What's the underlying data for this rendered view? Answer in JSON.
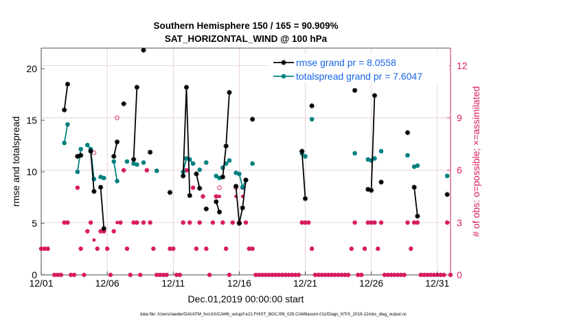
{
  "chart_data": {
    "type": "line",
    "title": "Southern Hemisphere 150 / 165 = 90.909%",
    "subtitle": "SAT_HORIZONTAL_WIND @ 100 hPa",
    "xlabel": "Dec.01,2019 00:00:00 start",
    "ylabel_left": "rmse and totalspread",
    "ylabel_right": "# of obs: o=possible; ×=assimilated",
    "footnote": "data file: /Users/raeder/DAI/ATM_forcXX/CAM6_setup/f.e21.FHIST_BGC.f09_025.CAM6assim.011/Diags_NTrS_2019-12/obs_diag_output.nc",
    "x_range": [
      1,
      32
    ],
    "ylim_left": [
      0,
      22
    ],
    "ylim_right": [
      0,
      13
    ],
    "x_ticks": [
      {
        "x": 1,
        "label": "12/01"
      },
      {
        "x": 6,
        "label": "12/06"
      },
      {
        "x": 11,
        "label": "12/11"
      },
      {
        "x": 16,
        "label": "12/16"
      },
      {
        "x": 21,
        "label": "12/21"
      },
      {
        "x": 26,
        "label": "12/26"
      },
      {
        "x": 31,
        "label": "12/31"
      }
    ],
    "y_ticks_left": [
      0,
      5,
      10,
      15,
      20
    ],
    "y_ticks_right": [
      0,
      3,
      6,
      9,
      12
    ],
    "legend": [
      {
        "label": "rmse grand pr = 8.0558",
        "color": "#000000",
        "marker": "star"
      },
      {
        "label": "totalspread grand pr = 7.6047",
        "color": "#008080",
        "marker": "dot"
      }
    ],
    "colors": {
      "rmse": "#000000",
      "spread": "#008080",
      "obs": "#d81b60",
      "grid": "#e3c8d4"
    },
    "rmse": [
      [
        [
          2.75,
          16.0
        ],
        [
          3.0,
          18.5
        ]
      ],
      [
        [
          3.75,
          11.5
        ],
        [
          4.0,
          11.6
        ]
      ],
      [
        [
          4.75,
          12.0
        ],
        [
          5.0,
          8.1
        ]
      ],
      [
        [
          5.5,
          8.5
        ],
        [
          5.75,
          4.5
        ]
      ],
      [
        [
          6.5,
          11.5
        ],
        [
          6.75,
          12.9
        ]
      ],
      [
        [
          7.25,
          16.6
        ]
      ],
      [
        [
          8.0,
          11.2
        ],
        [
          8.25,
          18.2
        ]
      ],
      [
        [
          8.75,
          21.8
        ]
      ],
      [
        [
          9.25,
          11.9
        ]
      ],
      [
        [
          10.75,
          8.0
        ]
      ],
      [
        [
          11.75,
          9.6
        ],
        [
          12.0,
          18.2
        ],
        [
          12.25,
          7.7
        ]
      ],
      [
        [
          12.75,
          9.8
        ],
        [
          13.0,
          8.4
        ]
      ],
      [
        [
          13.5,
          6.4
        ]
      ],
      [
        [
          14.25,
          7.1
        ],
        [
          14.5,
          6.1
        ]
      ],
      [
        [
          14.75,
          9.5
        ],
        [
          15.0,
          12.5
        ],
        [
          15.25,
          17.7
        ]
      ],
      [
        [
          15.75,
          8.6
        ],
        [
          16.0,
          5.0
        ],
        [
          16.25,
          6.5
        ],
        [
          16.5,
          9.2
        ]
      ],
      [
        [
          17.0,
          15.1
        ]
      ],
      [
        [
          20.75,
          12.0
        ],
        [
          21.0,
          7.4
        ]
      ],
      [
        [
          21.5,
          16.4
        ]
      ],
      [
        [
          24.75,
          17.9
        ]
      ],
      [
        [
          25.75,
          8.3
        ],
        [
          26.0,
          8.2
        ],
        [
          26.25,
          17.4
        ]
      ],
      [
        [
          26.75,
          9.0
        ]
      ],
      [
        [
          28.75,
          13.8
        ]
      ],
      [
        [
          29.25,
          8.5
        ],
        [
          29.5,
          5.7
        ]
      ],
      [
        [
          31.75,
          7.8
        ]
      ]
    ],
    "spread": [
      [
        [
          2.75,
          12.8
        ],
        [
          3.0,
          14.6
        ]
      ],
      [
        [
          3.75,
          10.0
        ],
        [
          4.0,
          12.2
        ]
      ],
      [
        [
          4.5,
          12.6
        ],
        [
          4.75,
          12.2
        ],
        [
          5.0,
          9.3
        ]
      ],
      [
        [
          5.5,
          9.5
        ],
        [
          5.75,
          9.4
        ]
      ],
      [
        [
          6.5,
          11.0
        ],
        [
          6.75,
          9.1
        ]
      ],
      [
        [
          7.5,
          11.0
        ]
      ],
      [
        [
          8.0,
          10.8
        ],
        [
          8.25,
          10.7
        ]
      ],
      [
        [
          8.75,
          10.9
        ]
      ],
      [
        [
          9.75,
          10.1
        ]
      ],
      [
        [
          11.75,
          10.0
        ],
        [
          12.0,
          11.3
        ],
        [
          12.25,
          11.2
        ],
        [
          12.5,
          10.8
        ]
      ],
      [
        [
          13.0,
          10.2
        ]
      ],
      [
        [
          13.5,
          10.9
        ]
      ],
      [
        [
          14.25,
          9.6
        ],
        [
          14.5,
          9.4
        ]
      ],
      [
        [
          14.75,
          10.4
        ],
        [
          15.0,
          10.8
        ],
        [
          15.25,
          11.1
        ]
      ],
      [
        [
          15.75,
          9.9
        ],
        [
          16.0,
          9.8
        ],
        [
          16.25,
          8.5
        ],
        [
          16.5,
          9.2
        ]
      ],
      [
        [
          17.0,
          10.8
        ]
      ],
      [
        [
          20.75,
          11.8
        ],
        [
          21.0,
          11.5
        ]
      ],
      [
        [
          21.5,
          15.1
        ]
      ],
      [
        [
          24.75,
          11.8
        ]
      ],
      [
        [
          25.75,
          11.2
        ],
        [
          26.0,
          11.1
        ],
        [
          26.25,
          11.3
        ]
      ],
      [
        [
          26.75,
          12.0
        ]
      ],
      [
        [
          28.75,
          11.6
        ]
      ],
      [
        [
          29.25,
          10.5
        ],
        [
          29.5,
          10.6
        ]
      ],
      [
        [
          31.75,
          9.6
        ]
      ]
    ],
    "obs_possible": [
      [
        1.0,
        1.5
      ],
      [
        1.25,
        1.5
      ],
      [
        1.5,
        1.5
      ],
      [
        2.0,
        0
      ],
      [
        2.25,
        0
      ],
      [
        2.5,
        0
      ],
      [
        2.75,
        3.0
      ],
      [
        3.0,
        3.0
      ],
      [
        3.25,
        0
      ],
      [
        3.5,
        0
      ],
      [
        3.75,
        5.0
      ],
      [
        4.0,
        1.5
      ],
      [
        4.25,
        0
      ],
      [
        4.5,
        2.5
      ],
      [
        4.75,
        3.0
      ],
      [
        5.0,
        7.0
      ],
      [
        5.25,
        1.5
      ],
      [
        5.5,
        2.5
      ],
      [
        5.75,
        2.5
      ],
      [
        6.0,
        1.5
      ],
      [
        6.25,
        0
      ],
      [
        6.5,
        2.5
      ],
      [
        6.75,
        9.0
      ],
      [
        7.0,
        3.0
      ],
      [
        7.25,
        6.0
      ],
      [
        7.5,
        1.5
      ],
      [
        7.75,
        0
      ],
      [
        8.0,
        3.0
      ],
      [
        8.25,
        3.0
      ],
      [
        8.5,
        0
      ],
      [
        8.75,
        3.0
      ],
      [
        9.0,
        6.0
      ],
      [
        9.25,
        3.0
      ],
      [
        9.5,
        1.5
      ],
      [
        9.75,
        0
      ],
      [
        10.0,
        0
      ],
      [
        10.25,
        0
      ],
      [
        10.5,
        0
      ],
      [
        10.75,
        1.5
      ],
      [
        11.0,
        1.5
      ],
      [
        11.25,
        0
      ],
      [
        11.5,
        0
      ],
      [
        11.75,
        3.0
      ],
      [
        12.0,
        6.0
      ],
      [
        12.25,
        3.0
      ],
      [
        12.5,
        5.0
      ],
      [
        12.75,
        1.5
      ],
      [
        13.0,
        3.0
      ],
      [
        13.25,
        4.5
      ],
      [
        13.5,
        1.5
      ],
      [
        13.75,
        0
      ],
      [
        14.0,
        3.0
      ],
      [
        14.25,
        4.5
      ],
      [
        14.5,
        5.0
      ],
      [
        14.75,
        3.0
      ],
      [
        15.0,
        1.5
      ],
      [
        15.25,
        0
      ],
      [
        15.5,
        3.0
      ],
      [
        15.75,
        5.0
      ],
      [
        16.0,
        3.0
      ],
      [
        16.25,
        5.0
      ],
      [
        16.5,
        3.0
      ],
      [
        16.75,
        1.5
      ],
      [
        17.0,
        1.5
      ],
      [
        17.25,
        0
      ],
      [
        17.5,
        0
      ],
      [
        17.75,
        0
      ],
      [
        18.0,
        0
      ],
      [
        18.25,
        0
      ],
      [
        18.5,
        0
      ],
      [
        18.75,
        0
      ],
      [
        19.0,
        0
      ],
      [
        19.25,
        0
      ],
      [
        19.5,
        0
      ],
      [
        19.75,
        0
      ],
      [
        20.0,
        0
      ],
      [
        20.25,
        0
      ],
      [
        20.5,
        0
      ],
      [
        20.75,
        3.0
      ],
      [
        21.0,
        3.0
      ],
      [
        21.25,
        3.0
      ],
      [
        21.5,
        1.5
      ],
      [
        21.75,
        0
      ],
      [
        22.0,
        0
      ],
      [
        22.25,
        0
      ],
      [
        22.5,
        0
      ],
      [
        22.75,
        0
      ],
      [
        23.0,
        0
      ],
      [
        23.25,
        0
      ],
      [
        23.5,
        0
      ],
      [
        23.75,
        0
      ],
      [
        24.0,
        0
      ],
      [
        24.25,
        0
      ],
      [
        24.5,
        1.5
      ],
      [
        24.75,
        3.0
      ],
      [
        25.0,
        0
      ],
      [
        25.25,
        0
      ],
      [
        25.5,
        1.5
      ],
      [
        25.75,
        3.0
      ],
      [
        26.0,
        3.0
      ],
      [
        26.25,
        3.0
      ],
      [
        26.5,
        1.5
      ],
      [
        26.75,
        3.0
      ],
      [
        27.0,
        0
      ],
      [
        27.25,
        0
      ],
      [
        27.5,
        0
      ],
      [
        27.75,
        0
      ],
      [
        28.0,
        0
      ],
      [
        28.25,
        0
      ],
      [
        28.5,
        0
      ],
      [
        28.75,
        3.0
      ],
      [
        29.0,
        1.5
      ],
      [
        29.25,
        3.0
      ],
      [
        29.5,
        3.0
      ],
      [
        29.75,
        0
      ],
      [
        30.0,
        0
      ],
      [
        30.25,
        0
      ],
      [
        30.5,
        0
      ],
      [
        30.75,
        0
      ],
      [
        31.0,
        0
      ],
      [
        31.25,
        0
      ],
      [
        31.5,
        0
      ],
      [
        31.75,
        3.0
      ],
      [
        32.0,
        0
      ]
    ],
    "obs_assimilated": [
      [
        1.0,
        1.5
      ],
      [
        1.25,
        1.5
      ],
      [
        1.5,
        1.5
      ],
      [
        2.0,
        0
      ],
      [
        2.25,
        0
      ],
      [
        2.5,
        0
      ],
      [
        2.75,
        3.0
      ],
      [
        3.0,
        3.0
      ],
      [
        3.25,
        0
      ],
      [
        3.5,
        0
      ],
      [
        3.75,
        5.0
      ],
      [
        4.0,
        1.5
      ],
      [
        4.25,
        0
      ],
      [
        4.5,
        2.5
      ],
      [
        4.75,
        3.0
      ],
      [
        5.0,
        2.0
      ],
      [
        5.25,
        1.5
      ],
      [
        5.5,
        2.5
      ],
      [
        5.75,
        2.5
      ],
      [
        6.0,
        1.5
      ],
      [
        6.25,
        0
      ],
      [
        6.5,
        2.5
      ],
      [
        6.75,
        3.0
      ],
      [
        7.0,
        3.0
      ],
      [
        7.25,
        6.0
      ],
      [
        7.5,
        1.5
      ],
      [
        7.75,
        0
      ],
      [
        8.0,
        3.0
      ],
      [
        8.25,
        3.0
      ],
      [
        8.5,
        0
      ],
      [
        8.75,
        3.0
      ],
      [
        9.0,
        6.0
      ],
      [
        9.25,
        3.0
      ],
      [
        9.5,
        1.5
      ],
      [
        9.75,
        0
      ],
      [
        10.0,
        0
      ],
      [
        10.25,
        0
      ],
      [
        10.5,
        0
      ],
      [
        10.75,
        1.5
      ],
      [
        11.0,
        1.5
      ],
      [
        11.25,
        0
      ],
      [
        11.5,
        0
      ],
      [
        11.75,
        3.0
      ],
      [
        12.0,
        6.0
      ],
      [
        12.25,
        3.0
      ],
      [
        12.5,
        5.0
      ],
      [
        12.75,
        1.5
      ],
      [
        13.0,
        3.0
      ],
      [
        13.25,
        4.5
      ],
      [
        13.5,
        1.5
      ],
      [
        13.75,
        0
      ],
      [
        14.0,
        3.0
      ],
      [
        14.25,
        4.5
      ],
      [
        14.5,
        4.5
      ],
      [
        14.75,
        3.0
      ],
      [
        15.0,
        1.5
      ],
      [
        15.25,
        0
      ],
      [
        15.5,
        3.0
      ],
      [
        15.75,
        4.5
      ],
      [
        16.0,
        3.0
      ],
      [
        16.25,
        4.5
      ],
      [
        16.5,
        3.0
      ],
      [
        16.75,
        1.5
      ],
      [
        17.0,
        1.5
      ],
      [
        17.25,
        0
      ],
      [
        17.5,
        0
      ],
      [
        17.75,
        0
      ],
      [
        18.0,
        0
      ],
      [
        18.25,
        0
      ],
      [
        18.5,
        0
      ],
      [
        18.75,
        0
      ],
      [
        19.0,
        0
      ],
      [
        19.25,
        0
      ],
      [
        19.5,
        0
      ],
      [
        19.75,
        0
      ],
      [
        20.0,
        0
      ],
      [
        20.25,
        0
      ],
      [
        20.5,
        0
      ],
      [
        20.75,
        3.0
      ],
      [
        21.0,
        3.0
      ],
      [
        21.25,
        3.0
      ],
      [
        21.5,
        1.5
      ],
      [
        21.75,
        0
      ],
      [
        22.0,
        0
      ],
      [
        22.25,
        0
      ],
      [
        22.5,
        0
      ],
      [
        22.75,
        0
      ],
      [
        23.0,
        0
      ],
      [
        23.25,
        0
      ],
      [
        23.5,
        0
      ],
      [
        23.75,
        0
      ],
      [
        24.0,
        0
      ],
      [
        24.25,
        0
      ],
      [
        24.5,
        1.5
      ],
      [
        24.75,
        3.0
      ],
      [
        25.0,
        0
      ],
      [
        25.25,
        0
      ],
      [
        25.5,
        1.5
      ],
      [
        25.75,
        3.0
      ],
      [
        26.0,
        3.0
      ],
      [
        26.25,
        3.0
      ],
      [
        26.5,
        1.5
      ],
      [
        26.75,
        3.0
      ],
      [
        27.0,
        0
      ],
      [
        27.25,
        0
      ],
      [
        27.5,
        0
      ],
      [
        27.75,
        0
      ],
      [
        28.0,
        0
      ],
      [
        28.25,
        0
      ],
      [
        28.5,
        0
      ],
      [
        28.75,
        3.0
      ],
      [
        29.0,
        1.5
      ],
      [
        29.25,
        3.0
      ],
      [
        29.5,
        3.0
      ],
      [
        29.75,
        0
      ],
      [
        30.0,
        0
      ],
      [
        30.25,
        0
      ],
      [
        30.5,
        0
      ],
      [
        30.75,
        0
      ],
      [
        31.0,
        0
      ],
      [
        31.25,
        0
      ],
      [
        31.5,
        0
      ],
      [
        31.75,
        3.0
      ],
      [
        32.0,
        0
      ]
    ]
  }
}
